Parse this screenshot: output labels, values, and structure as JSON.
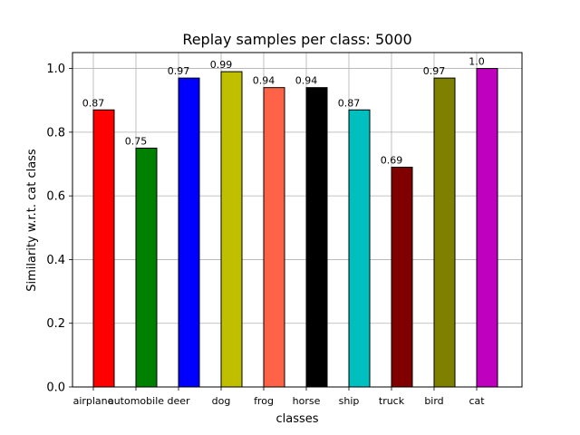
{
  "chart_data": {
    "type": "bar",
    "title": "Replay samples per class: 5000",
    "xlabel": "classes",
    "ylabel": "Similarity w.r.t. cat class",
    "categories": [
      "airplane",
      "automobile",
      "deer",
      "dog",
      "frog",
      "horse",
      "ship",
      "truck",
      "bird",
      "cat"
    ],
    "values": [
      0.87,
      0.75,
      0.97,
      0.99,
      0.94,
      0.94,
      0.87,
      0.69,
      0.97,
      1.0
    ],
    "value_labels": [
      "0.87",
      "0.75",
      "0.97",
      "0.99",
      "0.94",
      "0.94",
      "0.87",
      "0.69",
      "0.97",
      "1.0"
    ],
    "colors": [
      "#ff0000",
      "#008000",
      "#0000ff",
      "#bfbf00",
      "#ff6347",
      "#000000",
      "#00bfbf",
      "#800000",
      "#808000",
      "#bf00bf"
    ],
    "ylim": [
      0,
      1.05
    ],
    "yticks": [
      0.0,
      0.2,
      0.4,
      0.6,
      0.8,
      1.0
    ],
    "ytick_labels": [
      "0.0",
      "0.2",
      "0.4",
      "0.6",
      "0.8",
      "1.0"
    ],
    "grid": true,
    "legend": "none"
  }
}
